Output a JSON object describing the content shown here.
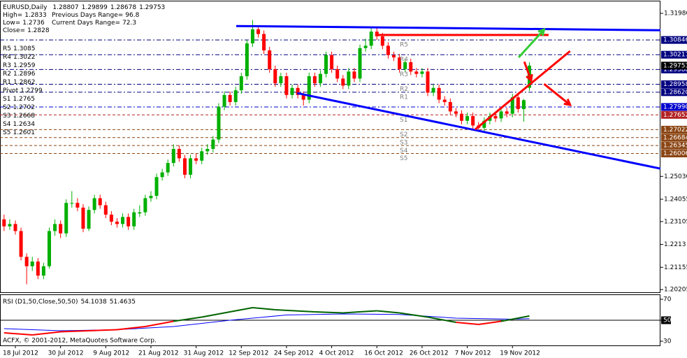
{
  "chart_data": {
    "type": "candlestick",
    "symbol": "EURUSD,Daily",
    "info": {
      "high_label": "High=",
      "low_label": "Low=",
      "close_label": "Close=",
      "prev_range_label": "Previous Days Range=",
      "prev_range": 96.8,
      "cur_range_label": "Current Days Range=",
      "cur_range": 72.3
    },
    "colors": {
      "up": "#00b000",
      "down": "#ff0000"
    },
    "xlim": [
      -0.72,
      116.2
    ],
    "ylim": [
      1.2009,
      1.3243
    ],
    "yticks": [
      {
        "value": 1.3198,
        "label": "1.31980"
      },
      {
        "value": 1.2503,
        "label": "1.25030"
      },
      1.24055,
      1.23105,
      1.2213,
      1.21155,
      1.20205
    ],
    "xticks": [
      {
        "value": 2,
        "label": "18 Jul 2012"
      },
      {
        "value": 10,
        "label": "30 Jul 2012"
      },
      {
        "value": 18,
        "label": "9 Aug 2012"
      },
      {
        "value": 26,
        "label": "21 Aug 2012"
      },
      {
        "value": 34,
        "label": "31 Aug 2012"
      },
      {
        "value": 42,
        "label": "12 Sep 2012"
      },
      {
        "value": 50,
        "label": "24 Sep 2012"
      },
      {
        "value": 58,
        "label": "4 Oct 2012"
      },
      {
        "value": 66,
        "label": "16 Oct 2012"
      },
      {
        "value": 74,
        "label": "26 Oct 2012"
      },
      {
        "value": 82,
        "label": "7 Nov 2012"
      },
      {
        "value": 90,
        "label": "19 Nov 2012"
      }
    ],
    "ohlc": [
      [
        1.232,
        1.234,
        1.227,
        1.229
      ],
      [
        1.229,
        1.232,
        1.2275,
        1.23
      ],
      [
        1.23,
        1.2315,
        1.2255,
        1.227
      ],
      [
        1.227,
        1.2285,
        1.2145,
        1.216
      ],
      [
        1.216,
        1.2175,
        1.2043,
        1.212
      ],
      [
        1.212,
        1.216,
        1.21,
        1.214
      ],
      [
        1.214,
        1.2155,
        1.2065,
        1.208
      ],
      [
        1.208,
        1.2135,
        1.2065,
        1.212
      ],
      [
        1.212,
        1.2285,
        1.211,
        1.227
      ],
      [
        1.227,
        1.232,
        1.225,
        1.23
      ],
      [
        1.23,
        1.2315,
        1.224,
        1.226
      ],
      [
        1.226,
        1.2405,
        1.2245,
        1.239
      ],
      [
        1.239,
        1.244,
        1.237,
        1.239
      ],
      [
        1.239,
        1.241,
        1.2355,
        1.237
      ],
      [
        1.237,
        1.2385,
        1.2265,
        1.228
      ],
      [
        1.228,
        1.2375,
        1.227,
        1.236
      ],
      [
        1.236,
        1.2425,
        1.2345,
        1.241
      ],
      [
        1.241,
        1.2425,
        1.2365,
        1.238
      ],
      [
        1.238,
        1.2395,
        1.2325,
        1.234
      ],
      [
        1.234,
        1.2355,
        1.2295,
        1.231
      ],
      [
        1.231,
        1.2325,
        1.2285,
        1.23
      ],
      [
        1.23,
        1.2345,
        1.2285,
        1.233
      ],
      [
        1.233,
        1.2345,
        1.2275,
        1.229
      ],
      [
        1.229,
        1.2365,
        1.2275,
        1.235
      ],
      [
        1.2345,
        1.238,
        1.233,
        1.235
      ],
      [
        1.235,
        1.2425,
        1.2335,
        1.241
      ],
      [
        1.241,
        1.244,
        1.2395,
        1.242
      ],
      [
        1.242,
        1.2515,
        1.2405,
        1.25
      ],
      [
        1.25,
        1.2535,
        1.2485,
        1.252
      ],
      [
        1.252,
        1.2575,
        1.2505,
        1.256
      ],
      [
        1.256,
        1.264,
        1.2545,
        1.262
      ],
      [
        1.262,
        1.2635,
        1.2565,
        1.258
      ],
      [
        1.258,
        1.2595,
        1.2495,
        1.251
      ],
      [
        1.251,
        1.2595,
        1.2495,
        1.258
      ],
      [
        1.258,
        1.26,
        1.2555,
        1.257
      ],
      [
        1.257,
        1.2625,
        1.2555,
        1.261
      ],
      [
        1.261,
        1.264,
        1.2595,
        1.262
      ],
      [
        1.262,
        1.2675,
        1.2605,
        1.266
      ],
      [
        1.266,
        1.2815,
        1.2645,
        1.28
      ],
      [
        1.28,
        1.2865,
        1.2785,
        1.285
      ],
      [
        1.285,
        1.2865,
        1.2805,
        1.282
      ],
      [
        1.282,
        1.2885,
        1.2805,
        1.287
      ],
      [
        1.287,
        1.2945,
        1.2855,
        1.293
      ],
      [
        1.293,
        1.3085,
        1.2915,
        1.307
      ],
      [
        1.307,
        1.317,
        1.3055,
        1.313
      ],
      [
        1.313,
        1.3145,
        1.3095,
        1.311
      ],
      [
        1.311,
        1.3125,
        1.3025,
        1.304
      ],
      [
        1.304,
        1.3055,
        1.2945,
        1.296
      ],
      [
        1.296,
        1.2975,
        1.2885,
        1.29
      ],
      [
        1.29,
        1.2945,
        1.2885,
        1.293
      ],
      [
        1.293,
        1.2945,
        1.2835,
        1.285
      ],
      [
        1.285,
        1.2895,
        1.2835,
        1.288
      ],
      [
        1.288,
        1.2895,
        1.2835,
        1.285
      ],
      [
        1.285,
        1.2865,
        1.2805,
        1.283
      ],
      [
        1.283,
        1.2945,
        1.2815,
        1.293
      ],
      [
        1.293,
        1.2945,
        1.2885,
        1.29
      ],
      [
        1.29,
        1.2955,
        1.2885,
        1.294
      ],
      [
        1.294,
        1.3035,
        1.2925,
        1.302
      ],
      [
        1.302,
        1.3035,
        1.2945,
        1.296
      ],
      [
        1.296,
        1.2975,
        1.2905,
        1.292
      ],
      [
        1.292,
        1.2935,
        1.2875,
        1.289
      ],
      [
        1.289,
        1.2965,
        1.2875,
        1.295
      ],
      [
        1.295,
        1.2965,
        1.2905,
        1.292
      ],
      [
        1.292,
        1.3065,
        1.2905,
        1.305
      ],
      [
        1.305,
        1.309,
        1.3035,
        1.306
      ],
      [
        1.306,
        1.314,
        1.3045,
        1.312
      ],
      [
        1.312,
        1.3135,
        1.3085,
        1.31
      ],
      [
        1.31,
        1.3115,
        1.3045,
        1.306
      ],
      [
        1.306,
        1.3075,
        1.3005,
        1.302
      ],
      [
        1.302,
        1.3035,
        1.2995,
        1.301
      ],
      [
        1.301,
        1.3025,
        1.2945,
        1.296
      ],
      [
        1.296,
        1.3005,
        1.2945,
        1.299
      ],
      [
        1.299,
        1.3005,
        1.2935,
        1.295
      ],
      [
        1.295,
        1.2965,
        1.2925,
        1.294
      ],
      [
        1.294,
        1.2965,
        1.2925,
        1.295
      ],
      [
        1.295,
        1.2965,
        1.2845,
        1.286
      ],
      [
        1.286,
        1.2895,
        1.2845,
        1.288
      ],
      [
        1.288,
        1.2895,
        1.2815,
        1.283
      ],
      [
        1.283,
        1.2845,
        1.2805,
        1.282
      ],
      [
        1.282,
        1.2835,
        1.2765,
        1.278
      ],
      [
        1.278,
        1.2795,
        1.2755,
        1.277
      ],
      [
        1.277,
        1.2785,
        1.2725,
        1.274
      ],
      [
        1.274,
        1.2775,
        1.2725,
        1.276
      ],
      [
        1.276,
        1.2775,
        1.2705,
        1.272
      ],
      [
        1.272,
        1.2735,
        1.2695,
        1.271
      ],
      [
        1.271,
        1.2755,
        1.2695,
        1.274
      ],
      [
        1.274,
        1.2775,
        1.2725,
        1.276
      ],
      [
        1.276,
        1.2775,
        1.2735,
        1.275
      ],
      [
        1.275,
        1.2795,
        1.2735,
        1.278
      ],
      [
        1.278,
        1.2795,
        1.2755,
        1.277
      ],
      [
        1.277,
        1.2855,
        1.2755,
        1.284
      ],
      [
        1.284,
        1.2855,
        1.2775,
        1.279
      ],
      [
        1.279,
        1.2833,
        1.2736,
        1.2828
      ],
      [
        1.28807,
        1.29899,
        1.28678,
        1.29753
      ]
    ],
    "pivots": [
      {
        "name": "R5",
        "value": 1.3085
      },
      {
        "name": "R4",
        "value": 1.3022
      },
      {
        "name": "R3",
        "value": 1.2959
      },
      {
        "name": "R2",
        "value": 1.2896
      },
      {
        "name": "R1",
        "value": 1.2862
      },
      {
        "name": "Pivot",
        "value": 1.2799
      },
      {
        "name": "S1",
        "value": 1.2765
      },
      {
        "name": "S2",
        "value": 1.2702
      },
      {
        "name": "S3",
        "value": 1.2668
      },
      {
        "name": "S4",
        "value": 1.2634
      },
      {
        "name": "S5",
        "value": 1.2601
      }
    ],
    "levels": [
      1.30846,
      1.30217,
      1.29588,
      1.28958,
      {
        "value": 1.2862,
        "label": "1.28620"
      },
      {
        "value": 1.2799,
        "label": "1.27990"
      },
      1.27652,
      1.27022,
      1.26684,
      1.26345,
      1.26006
    ],
    "level_colors": [
      "#000080",
      "#000080",
      "#000080",
      "#000080",
      "#000080",
      "#0000cd",
      "#b22222",
      "#8b4513",
      "#8b4513",
      "#8b4513",
      "#8b4513"
    ],
    "trendlines": [
      {
        "x": [
          41.1,
          116.2
        ],
        "y": [
          1.3144,
          1.3126
        ],
        "color": "#0000ff"
      },
      {
        "x": [
          51.9,
          116.2
        ],
        "y": [
          1.2858,
          1.2536
        ],
        "color": "#0000ff"
      },
      {
        "x": [
          66.1,
          96.4
        ],
        "y": [
          1.3106,
          1.3106
        ],
        "color": "#ff0000"
      },
      {
        "x": [
          83.4,
          100.2
        ],
        "y": [
          1.2703,
          1.3037
        ],
        "color": "#ff0000"
      },
      {
        "x": [
          91.1,
          95.6
        ],
        "y": [
          1.301,
          1.3129
        ],
        "color": "#33cc33",
        "arrow": true
      },
      {
        "x": [
          92.1,
          93.3
        ],
        "y": [
          1.2992,
          1.2912
        ],
        "color": "#ff0000",
        "arrow": true
      },
      {
        "x": [
          95.6,
          100.2
        ],
        "y": [
          1.2897,
          1.2808
        ],
        "color": "#ff0000",
        "arrow": true
      }
    ],
    "rsi": {
      "label": "RSI (D1,50,Close,50,50)",
      "value": 54.1038,
      "signal_value": 51.4635,
      "ylim": [
        26,
        74
      ],
      "yticks": [
        70,
        50,
        30
      ],
      "level": 50,
      "x": [
        0,
        5,
        10,
        15,
        20,
        25,
        30,
        35,
        40,
        44,
        48,
        55,
        60,
        66,
        70,
        75,
        80,
        84,
        88,
        90,
        93
      ],
      "values": [
        38,
        36,
        39,
        40,
        41,
        44,
        49,
        53,
        58,
        62,
        60,
        58,
        57,
        59,
        57,
        53,
        48,
        46,
        49,
        51,
        54.1038
      ],
      "signal_x": [
        0,
        10,
        20,
        30,
        40,
        50,
        60,
        70,
        80,
        90,
        93
      ],
      "signal": [
        42,
        40,
        41,
        44,
        50,
        55,
        56,
        55.5,
        52,
        51,
        51.4635
      ],
      "colors": {
        "up": "#006400",
        "down": "#ff0000",
        "signal": "#0000ff"
      }
    },
    "copyright": "ACFX, © 2001-2012, MetaQuotes Software Corp."
  }
}
